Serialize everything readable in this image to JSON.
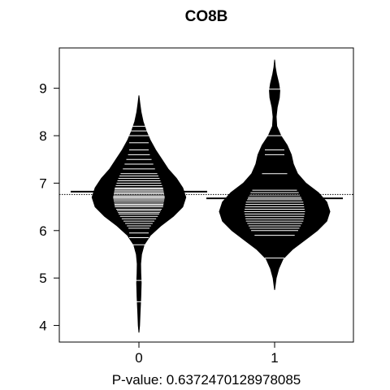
{
  "chart_data": {
    "type": "beanplot",
    "title": "CO8B",
    "xlabel": "P-value: 0.6372470128978085",
    "ylabel": "",
    "categories": [
      "0",
      "1"
    ],
    "yticks": [
      4,
      5,
      6,
      7,
      8,
      9
    ],
    "ylim": [
      3.65,
      9.85
    ],
    "overall_mean": 6.76,
    "grid": false,
    "legend": "none",
    "beans": [
      {
        "category": "0",
        "mean": 6.82,
        "range": [
          3.85,
          8.85
        ],
        "density": [
          [
            3.85,
            0.0
          ],
          [
            4.0,
            0.006
          ],
          [
            4.3,
            0.012
          ],
          [
            4.6,
            0.018
          ],
          [
            4.9,
            0.022
          ],
          [
            5.1,
            0.018
          ],
          [
            5.3,
            0.016
          ],
          [
            5.5,
            0.025
          ],
          [
            5.7,
            0.05
          ],
          [
            5.9,
            0.11
          ],
          [
            6.1,
            0.21
          ],
          [
            6.3,
            0.33
          ],
          [
            6.5,
            0.42
          ],
          [
            6.7,
            0.45
          ],
          [
            6.9,
            0.42
          ],
          [
            7.1,
            0.36
          ],
          [
            7.3,
            0.28
          ],
          [
            7.5,
            0.22
          ],
          [
            7.7,
            0.16
          ],
          [
            7.9,
            0.11
          ],
          [
            8.1,
            0.07
          ],
          [
            8.3,
            0.04
          ],
          [
            8.5,
            0.02
          ],
          [
            8.7,
            0.008
          ],
          [
            8.85,
            0.0
          ]
        ],
        "observations": [
          4.5,
          4.95,
          5.7,
          5.85,
          5.95,
          6.05,
          6.1,
          6.15,
          6.2,
          6.25,
          6.3,
          6.35,
          6.38,
          6.42,
          6.45,
          6.5,
          6.53,
          6.55,
          6.58,
          6.62,
          6.65,
          6.68,
          6.7,
          6.72,
          6.75,
          6.78,
          6.8,
          6.83,
          6.85,
          6.88,
          6.9,
          6.95,
          7.0,
          7.05,
          7.1,
          7.15,
          7.2,
          7.3,
          7.4,
          7.5,
          7.6,
          7.7,
          7.85,
          8.0,
          8.1,
          8.2
        ]
      },
      {
        "category": "1",
        "mean": 6.68,
        "range": [
          4.75,
          9.6
        ],
        "density": [
          [
            4.75,
            0.0
          ],
          [
            5.0,
            0.015
          ],
          [
            5.2,
            0.04
          ],
          [
            5.4,
            0.08
          ],
          [
            5.6,
            0.17
          ],
          [
            5.8,
            0.29
          ],
          [
            6.0,
            0.41
          ],
          [
            6.2,
            0.5
          ],
          [
            6.4,
            0.53
          ],
          [
            6.6,
            0.5
          ],
          [
            6.8,
            0.42
          ],
          [
            7.0,
            0.3
          ],
          [
            7.2,
            0.22
          ],
          [
            7.4,
            0.18
          ],
          [
            7.6,
            0.16
          ],
          [
            7.8,
            0.12
          ],
          [
            8.0,
            0.06
          ],
          [
            8.2,
            0.02
          ],
          [
            8.4,
            0.015
          ],
          [
            8.6,
            0.025
          ],
          [
            8.8,
            0.045
          ],
          [
            8.95,
            0.05
          ],
          [
            9.1,
            0.04
          ],
          [
            9.3,
            0.018
          ],
          [
            9.45,
            0.006
          ],
          [
            9.6,
            0.0
          ]
        ],
        "observations": [
          5.42,
          5.9,
          6.0,
          6.05,
          6.1,
          6.15,
          6.2,
          6.25,
          6.3,
          6.35,
          6.4,
          6.45,
          6.5,
          6.55,
          6.6,
          6.65,
          6.7,
          6.75,
          6.8,
          6.85,
          7.2,
          7.6,
          7.7,
          8.0,
          8.98
        ]
      }
    ]
  }
}
